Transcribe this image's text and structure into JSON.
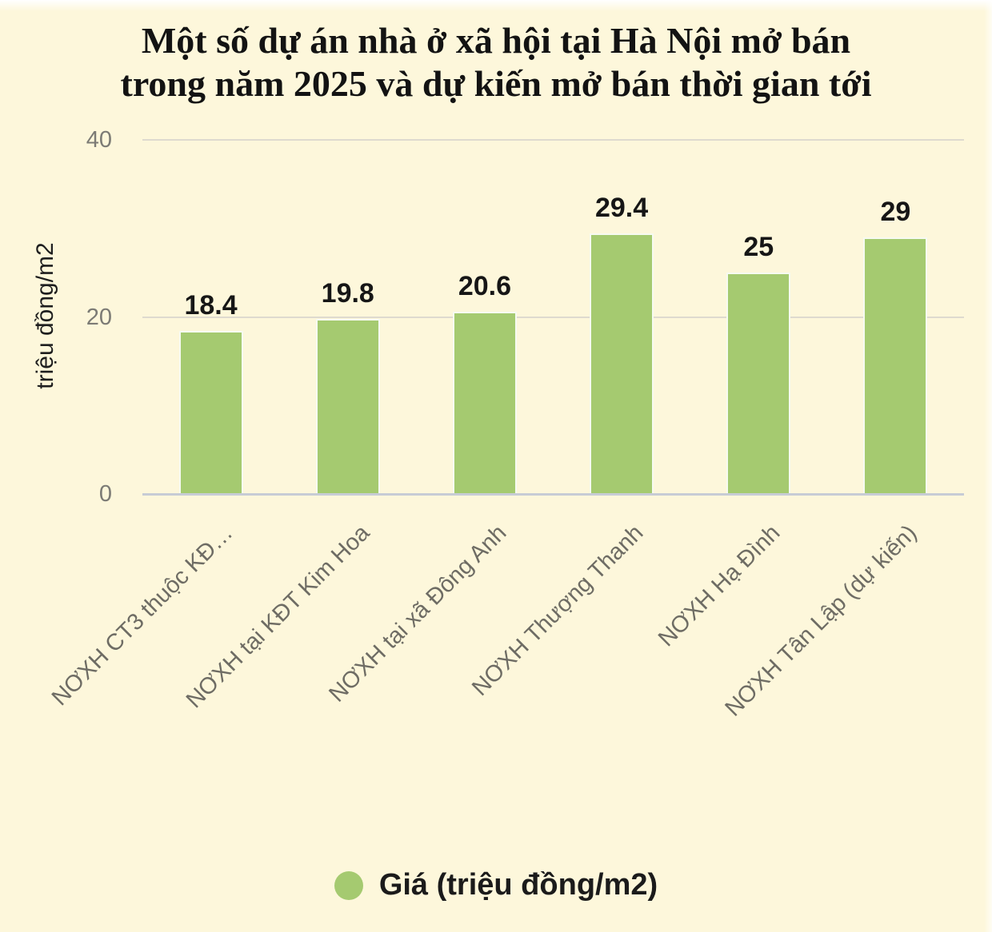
{
  "background_color": "#fdf7db",
  "title": {
    "line1": "Một số dự án nhà ở xã hội tại Hà Nội mở bán",
    "line2": "trong năm 2025 và dự kiến mở bán thời gian tới"
  },
  "y_axis_title": "triệu đồng/m2",
  "legend": {
    "label": "Giá (triệu đồng/m2)",
    "marker_color": "#a5ca70"
  },
  "chart_data": {
    "type": "bar",
    "title": "Một số dự án nhà ở xã hội tại Hà Nội mở bán trong năm 2025 và dự kiến mở bán thời gian tới",
    "categories": [
      "NƠXH CT3 thuộc KĐ…",
      "NƠXH tại KĐT Kim Hoa",
      "NƠXH tại xã Đông Anh",
      "NƠXH Thượng Thanh",
      "NƠXH Hạ Đình",
      "NƠXH Tân Lập (dự kiến)"
    ],
    "values": [
      18.4,
      19.8,
      20.6,
      29.4,
      25,
      29
    ],
    "value_labels": [
      "18.4",
      "19.8",
      "20.6",
      "29.4",
      "25",
      "29"
    ],
    "xlabel": "",
    "ylabel": "triệu đồng/m2",
    "ylim": [
      0,
      40
    ],
    "yticks": [
      0,
      20,
      40
    ],
    "grid": true,
    "bar_color": "#a5ca70",
    "legend": {
      "entries": [
        "Giá (triệu đồng/m2)"
      ],
      "position": "bottom"
    }
  }
}
